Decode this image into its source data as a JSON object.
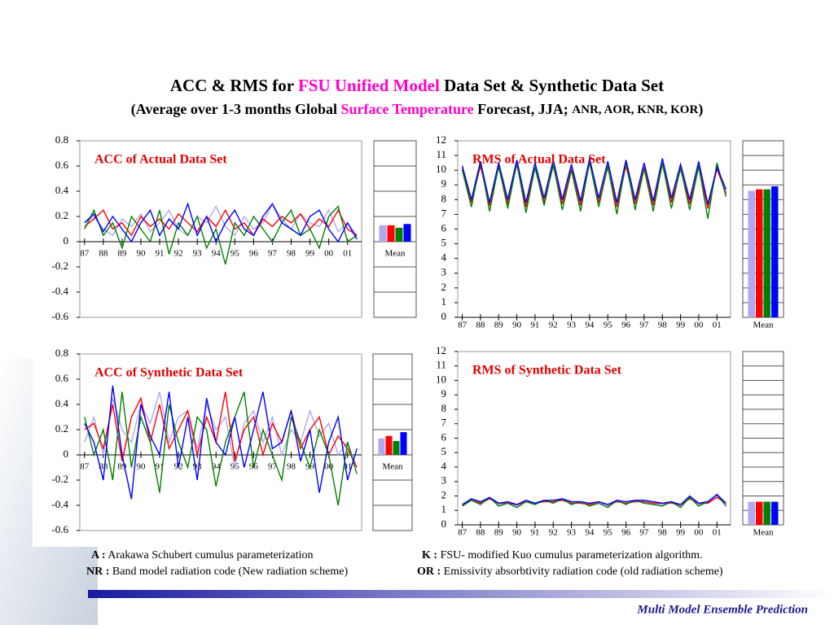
{
  "title": {
    "a": "ACC & RMS for ",
    "b": "FSU Unified Model",
    "c": " Data Set & Synthetic Data Set"
  },
  "subtitle": {
    "a": "(Average over 1-3 months Global ",
    "b": "Surface Temperature",
    "c": " Forecast, JJA; ",
    "d": "ANR, AOR, KNR, KOR",
    "e": ")"
  },
  "notes": [
    {
      "key": "A :",
      "text": " Arakawa Schubert cumulus parameterization"
    },
    {
      "key": "K :",
      "text": " FSU- modified Kuo cumulus parameterization algorithm."
    },
    {
      "key": "NR :",
      "text": " Band model radiation code (New radiation scheme)"
    },
    {
      "key": "OR :",
      "text": " Emissivity absorbtivity radiation code (old radiation scheme)"
    }
  ],
  "footer": "Multi Model Ensemble Prediction",
  "chart_data": [
    {
      "type": "line",
      "label": "ACC of Actual Data Set",
      "x": [
        0,
        0.5,
        1,
        1.5,
        2,
        2.5,
        3,
        3.5,
        4,
        4.5,
        5,
        5.5,
        6,
        6.5,
        7,
        7.5,
        8,
        8.5,
        9,
        9.5,
        10,
        10.5,
        11,
        11.5,
        12,
        12.5,
        13,
        13.5,
        14,
        14.5
      ],
      "xlim": [
        -0.25,
        14.75
      ],
      "xticks": [
        {
          "value": 0,
          "label": "87"
        },
        {
          "value": 1,
          "label": "88"
        },
        {
          "value": 2,
          "label": "89"
        },
        {
          "value": 3,
          "label": "90"
        },
        {
          "value": 4,
          "label": "91"
        },
        {
          "value": 5,
          "label": "92"
        },
        {
          "value": 6,
          "label": "93"
        },
        {
          "value": 7,
          "label": "94"
        },
        {
          "value": 8,
          "label": "95"
        },
        {
          "value": 9,
          "label": "96"
        },
        {
          "value": 10,
          "label": "97"
        },
        {
          "value": 11,
          "label": "98"
        },
        {
          "value": 12,
          "label": "99"
        },
        {
          "value": 13,
          "label": "00"
        },
        {
          "value": 14,
          "label": "01"
        }
      ],
      "ylim": [
        -0.6,
        0.8
      ],
      "yticks": [
        -0.6,
        -0.4,
        -0.2,
        0,
        0.2,
        0.4,
        0.6,
        0.8
      ],
      "series": [
        {
          "color": "#b0a8f0",
          "values": [
            0.15,
            0.2,
            0.1,
            0.05,
            0.18,
            0.12,
            0.22,
            0.08,
            0.15,
            0.25,
            0.1,
            0.05,
            0.2,
            0.15,
            0.28,
            0.12,
            0.05,
            0.2,
            0.1,
            0.15,
            0.3,
            0.18,
            0.1,
            0.22,
            0.15,
            0.12,
            0.25,
            0.08,
            0.15,
            0.05
          ]
        },
        {
          "color": "#ff0000",
          "values": [
            0.12,
            0.18,
            0.25,
            0.1,
            0.15,
            0.05,
            0.2,
            0.12,
            0.18,
            0.1,
            0.22,
            0.15,
            0.08,
            0.2,
            0.12,
            0.25,
            0.1,
            0.15,
            0.05,
            0.18,
            0.12,
            0.2,
            0.15,
            0.22,
            0.1,
            0.18,
            0.12,
            0.25,
            0.1,
            0.05
          ]
        },
        {
          "color": "#008000",
          "values": [
            0.1,
            0.25,
            0.05,
            0.15,
            -0.05,
            0.2,
            0.1,
            0.0,
            0.25,
            -0.1,
            0.15,
            0.05,
            0.2,
            -0.05,
            0.1,
            -0.18,
            0.15,
            0.05,
            0.2,
            0.1,
            0.0,
            0.15,
            0.25,
            0.05,
            0.1,
            -0.05,
            0.2,
            0.28,
            0.0,
            0.05
          ]
        },
        {
          "color": "#0000ff",
          "values": [
            0.15,
            0.22,
            0.08,
            0.2,
            0.1,
            0.0,
            0.15,
            0.25,
            0.05,
            0.18,
            0.1,
            0.3,
            0.05,
            0.2,
            0.0,
            0.15,
            0.25,
            0.1,
            0.05,
            0.2,
            0.3,
            0.15,
            0.1,
            0.05,
            0.2,
            0.25,
            0.1,
            0.0,
            0.15,
            0.02
          ]
        }
      ]
    },
    {
      "type": "bar",
      "label": "Mean",
      "ylim": [
        -0.6,
        0.8
      ],
      "yticks": [
        -0.6,
        -0.4,
        -0.2,
        0,
        0.2,
        0.4,
        0.6,
        0.8
      ],
      "colors": [
        "#b0a8f0",
        "#ff0000",
        "#008000",
        "#0000ff"
      ],
      "values": [
        0.13,
        0.13,
        0.11,
        0.14
      ]
    },
    {
      "type": "line",
      "label": "RMS of Actual Data Set",
      "x": [
        0,
        0.5,
        1,
        1.5,
        2,
        2.5,
        3,
        3.5,
        4,
        4.5,
        5,
        5.5,
        6,
        6.5,
        7,
        7.5,
        8,
        8.5,
        9,
        9.5,
        10,
        10.5,
        11,
        11.5,
        12,
        12.5,
        13,
        13.5,
        14,
        14.5
      ],
      "xlim": [
        -0.25,
        14.75
      ],
      "xticks": [
        {
          "value": 0,
          "label": "87"
        },
        {
          "value": 1,
          "label": "88"
        },
        {
          "value": 2,
          "label": "89"
        },
        {
          "value": 3,
          "label": "90"
        },
        {
          "value": 4,
          "label": "91"
        },
        {
          "value": 5,
          "label": "92"
        },
        {
          "value": 6,
          "label": "93"
        },
        {
          "value": 7,
          "label": "94"
        },
        {
          "value": 8,
          "label": "95"
        },
        {
          "value": 9,
          "label": "96"
        },
        {
          "value": 10,
          "label": "97"
        },
        {
          "value": 11,
          "label": "98"
        },
        {
          "value": 12,
          "label": "99"
        },
        {
          "value": 13,
          "label": "00"
        },
        {
          "value": 14,
          "label": "01"
        }
      ],
      "ylim": [
        0,
        12
      ],
      "yticks": [
        0,
        1,
        2,
        3,
        4,
        5,
        6,
        7,
        8,
        9,
        10,
        11,
        12
      ],
      "series": [
        {
          "color": "#b0a8f0",
          "values": [
            10.2,
            7.9,
            10.5,
            7.7,
            10.4,
            7.8,
            10.6,
            7.6,
            10.3,
            7.9,
            10.5,
            7.8,
            10.2,
            7.7,
            10.7,
            7.9,
            10.4,
            7.6,
            10.5,
            7.8,
            10.3,
            7.7,
            10.6,
            7.9,
            10.2,
            7.8,
            10.4,
            7.5,
            10.3,
            8.5
          ]
        },
        {
          "color": "#ff0000",
          "values": [
            10.1,
            7.8,
            10.3,
            7.6,
            10.2,
            7.7,
            10.4,
            7.5,
            10.2,
            7.8,
            10.3,
            7.7,
            10.1,
            7.6,
            10.5,
            7.8,
            10.2,
            7.5,
            10.3,
            7.7,
            10.2,
            7.6,
            10.4,
            7.8,
            10.1,
            7.7,
            10.2,
            7.4,
            10.1,
            8.4
          ]
        },
        {
          "color": "#008000",
          "values": [
            10.0,
            7.5,
            10.6,
            7.2,
            10.3,
            7.4,
            10.5,
            7.1,
            10.2,
            7.6,
            10.4,
            7.3,
            10.0,
            7.2,
            10.6,
            7.5,
            10.3,
            7.0,
            10.6,
            7.3,
            10.1,
            7.2,
            10.5,
            7.4,
            10.2,
            7.3,
            10.3,
            6.7,
            10.5,
            8.2
          ]
        },
        {
          "color": "#0000ff",
          "values": [
            10.3,
            8.0,
            10.6,
            7.8,
            10.5,
            8.0,
            10.7,
            7.8,
            10.5,
            8.1,
            10.7,
            8.0,
            10.4,
            7.9,
            10.8,
            8.1,
            10.6,
            7.8,
            10.7,
            8.0,
            10.5,
            7.9,
            10.8,
            8.1,
            10.4,
            8.0,
            10.6,
            7.7,
            10.2,
            8.7
          ]
        }
      ]
    },
    {
      "type": "bar",
      "label": "Mean",
      "ylim": [
        0,
        12
      ],
      "yticks": [
        0,
        1,
        2,
        3,
        4,
        5,
        6,
        7,
        8,
        9,
        10,
        11,
        12
      ],
      "colors": [
        "#b0a8f0",
        "#ff0000",
        "#008000",
        "#0000ff"
      ],
      "values": [
        8.6,
        8.7,
        8.7,
        8.9
      ]
    },
    {
      "type": "line",
      "label": "ACC of Synthetic Data Set",
      "x": [
        0,
        0.5,
        1,
        1.5,
        2,
        2.5,
        3,
        3.5,
        4,
        4.5,
        5,
        5.5,
        6,
        6.5,
        7,
        7.5,
        8,
        8.5,
        9,
        9.5,
        10,
        10.5,
        11,
        11.5,
        12,
        12.5,
        13,
        13.5,
        14,
        14.5
      ],
      "xlim": [
        -0.25,
        14.75
      ],
      "xticks": [
        {
          "value": 0,
          "label": "87"
        },
        {
          "value": 1,
          "label": "88"
        },
        {
          "value": 2,
          "label": "89"
        },
        {
          "value": 3,
          "label": "90"
        },
        {
          "value": 4,
          "label": "91"
        },
        {
          "value": 5,
          "label": "92"
        },
        {
          "value": 6,
          "label": "93"
        },
        {
          "value": 7,
          "label": "94"
        },
        {
          "value": 8,
          "label": "95"
        },
        {
          "value": 9,
          "label": "96"
        },
        {
          "value": 10,
          "label": "97"
        },
        {
          "value": 11,
          "label": "98"
        },
        {
          "value": 12,
          "label": "99"
        },
        {
          "value": 13,
          "label": "00"
        },
        {
          "value": 14,
          "label": "01"
        }
      ],
      "ylim": [
        -0.6,
        0.8
      ],
      "yticks": [
        -0.6,
        -0.4,
        -0.2,
        0,
        0.2,
        0.4,
        0.6,
        0.8
      ],
      "series": [
        {
          "color": "#b0a8f0",
          "values": [
            0.1,
            0.3,
            0.0,
            0.45,
            0.2,
            0.1,
            0.4,
            0.25,
            0.5,
            0.1,
            0.3,
            0.35,
            0.05,
            0.4,
            0.2,
            0.3,
            -0.1,
            0.25,
            0.35,
            0.1,
            0.3,
            0.0,
            0.2,
            0.1,
            0.35,
            0.15,
            0.25,
            0.0,
            0.1,
            -0.1
          ]
        },
        {
          "color": "#ff0000",
          "values": [
            0.2,
            0.25,
            0.05,
            0.4,
            -0.05,
            0.3,
            0.45,
            0.1,
            0.4,
            0.05,
            0.2,
            0.35,
            0.0,
            0.3,
            0.1,
            0.5,
            -0.05,
            0.2,
            0.3,
            0.0,
            0.25,
            0.1,
            0.35,
            0.05,
            0.2,
            0.3,
            0.0,
            0.15,
            0.05,
            -0.1
          ]
        },
        {
          "color": "#008000",
          "values": [
            0.3,
            0.0,
            0.2,
            -0.2,
            0.5,
            -0.1,
            0.3,
            0.1,
            -0.3,
            0.4,
            0.1,
            -0.1,
            0.3,
            0.2,
            -0.25,
            0.1,
            0.3,
            0.5,
            -0.1,
            0.2,
            0.0,
            -0.2,
            0.3,
            0.1,
            -0.1,
            0.2,
            0.0,
            -0.4,
            0.1,
            -0.15
          ]
        },
        {
          "color": "#0000ff",
          "values": [
            0.25,
            0.1,
            -0.2,
            0.55,
            0.0,
            -0.35,
            0.4,
            0.15,
            0.0,
            0.5,
            -0.1,
            0.3,
            -0.2,
            0.45,
            0.1,
            0.0,
            0.3,
            -0.1,
            0.2,
            0.5,
            0.05,
            0.1,
            0.35,
            -0.05,
            0.2,
            -0.3,
            0.1,
            0.3,
            -0.2,
            0.05
          ]
        }
      ]
    },
    {
      "type": "bar",
      "label": "Mean",
      "ylim": [
        -0.6,
        0.8
      ],
      "yticks": [
        -0.6,
        -0.4,
        -0.2,
        0,
        0.2,
        0.4,
        0.6,
        0.8
      ],
      "colors": [
        "#b0a8f0",
        "#ff0000",
        "#008000",
        "#0000ff"
      ],
      "values": [
        0.13,
        0.15,
        0.11,
        0.18
      ]
    },
    {
      "type": "line",
      "label": "RMS of Synthetic Data Set",
      "x": [
        0,
        0.5,
        1,
        1.5,
        2,
        2.5,
        3,
        3.5,
        4,
        4.5,
        5,
        5.5,
        6,
        6.5,
        7,
        7.5,
        8,
        8.5,
        9,
        9.5,
        10,
        10.5,
        11,
        11.5,
        12,
        12.5,
        13,
        13.5,
        14,
        14.5
      ],
      "xlim": [
        -0.25,
        14.75
      ],
      "xticks": [
        {
          "value": 0,
          "label": "87"
        },
        {
          "value": 1,
          "label": "88"
        },
        {
          "value": 2,
          "label": "89"
        },
        {
          "value": 3,
          "label": "90"
        },
        {
          "value": 4,
          "label": "91"
        },
        {
          "value": 5,
          "label": "92"
        },
        {
          "value": 6,
          "label": "93"
        },
        {
          "value": 7,
          "label": "94"
        },
        {
          "value": 8,
          "label": "95"
        },
        {
          "value": 9,
          "label": "96"
        },
        {
          "value": 10,
          "label": "97"
        },
        {
          "value": 11,
          "label": "98"
        },
        {
          "value": 12,
          "label": "99"
        },
        {
          "value": 13,
          "label": "00"
        },
        {
          "value": 14,
          "label": "01"
        }
      ],
      "ylim": [
        0,
        12
      ],
      "yticks": [
        0,
        1,
        2,
        3,
        4,
        5,
        6,
        7,
        8,
        9,
        10,
        11,
        12
      ],
      "series": [
        {
          "color": "#b0a8f0",
          "values": [
            1.3,
            1.8,
            1.5,
            1.9,
            1.4,
            1.6,
            1.3,
            1.6,
            1.5,
            1.7,
            1.6,
            1.8,
            1.5,
            1.6,
            1.4,
            1.5,
            1.3,
            1.6,
            1.5,
            1.7,
            1.6,
            1.5,
            1.4,
            1.6,
            1.3,
            1.9,
            1.4,
            1.6,
            2.0,
            1.4
          ]
        },
        {
          "color": "#ff0000",
          "values": [
            1.4,
            1.7,
            1.5,
            1.8,
            1.5,
            1.5,
            1.4,
            1.6,
            1.5,
            1.6,
            1.6,
            1.7,
            1.5,
            1.5,
            1.4,
            1.6,
            1.4,
            1.6,
            1.5,
            1.6,
            1.6,
            1.5,
            1.5,
            1.5,
            1.4,
            1.8,
            1.5,
            1.5,
            1.9,
            1.5
          ]
        },
        {
          "color": "#008000",
          "values": [
            1.3,
            1.7,
            1.4,
            1.9,
            1.3,
            1.5,
            1.2,
            1.6,
            1.4,
            1.7,
            1.5,
            1.8,
            1.4,
            1.6,
            1.3,
            1.5,
            1.2,
            1.7,
            1.4,
            1.7,
            1.5,
            1.4,
            1.3,
            1.6,
            1.2,
            1.9,
            1.3,
            1.6,
            2.1,
            1.3
          ]
        },
        {
          "color": "#0000ff",
          "values": [
            1.4,
            1.8,
            1.6,
            1.9,
            1.5,
            1.6,
            1.4,
            1.7,
            1.5,
            1.7,
            1.7,
            1.8,
            1.6,
            1.6,
            1.5,
            1.6,
            1.4,
            1.7,
            1.6,
            1.7,
            1.7,
            1.6,
            1.5,
            1.6,
            1.4,
            2.0,
            1.5,
            1.6,
            2.1,
            1.5
          ]
        }
      ]
    },
    {
      "type": "bar",
      "label": "Mean",
      "ylim": [
        0,
        12
      ],
      "yticks": [
        0,
        1,
        2,
        3,
        4,
        5,
        6,
        7,
        8,
        9,
        10,
        11,
        12
      ],
      "colors": [
        "#b0a8f0",
        "#ff0000",
        "#008000",
        "#0000ff"
      ],
      "values": [
        1.6,
        1.6,
        1.6,
        1.6
      ]
    }
  ]
}
